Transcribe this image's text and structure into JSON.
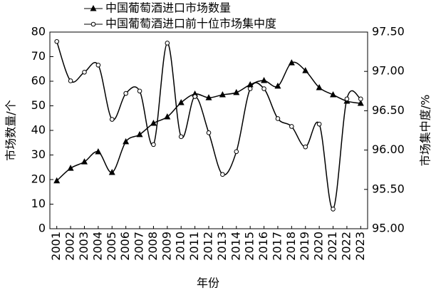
{
  "chart_data": {
    "type": "line",
    "x_label": "年份",
    "y_label": "市场数量/个",
    "y2_label": "市场集中度/%",
    "categories": [
      "2001",
      "2002",
      "2003",
      "2004",
      "2005",
      "2006",
      "2007",
      "2008",
      "2009",
      "2010",
      "2011",
      "2012",
      "2013",
      "2014",
      "2015",
      "2016",
      "2017",
      "2018",
      "2019",
      "2020",
      "2021",
      "2022",
      "2023"
    ],
    "series": [
      {
        "name": "中国葡萄酒进口市场数量",
        "color": "#000000",
        "marker": "triangle",
        "values": [
          19.5,
          24.6,
          27.2,
          31.3,
          22.9,
          35.4,
          38.3,
          42.9,
          45.5,
          51.3,
          54.8,
          53.3,
          54.5,
          55.4,
          58.6,
          60.3,
          58.0,
          67.5,
          64.3,
          57.4,
          54.5,
          51.9,
          51.0
        ]
      },
      {
        "name": "中国葡萄酒进口前十位市场集中度",
        "color": "#000000",
        "marker": "circle",
        "axis": "y2",
        "values": [
          97.38,
          96.88,
          96.99,
          97.08,
          96.39,
          96.72,
          96.75,
          96.07,
          97.36,
          96.17,
          96.68,
          96.22,
          95.69,
          95.98,
          96.78,
          96.78,
          96.4,
          96.3,
          96.04,
          96.33,
          95.25,
          96.65,
          96.65
        ]
      }
    ],
    "ylim": [
      0,
      80
    ],
    "yticks": [
      0,
      10,
      20,
      30,
      40,
      50,
      60,
      70,
      80
    ],
    "y2lim": [
      95,
      97.5
    ],
    "y2ticks": [
      {
        "value": 95,
        "label": "95.00"
      },
      {
        "value": 95.5,
        "label": "95.50"
      },
      {
        "value": 96,
        "label": "96.00"
      },
      {
        "value": 96.5,
        "label": "96.50"
      },
      {
        "value": 97,
        "label": "97.00"
      },
      {
        "value": 97.5,
        "label": "97.50"
      }
    ],
    "smooth": true,
    "grid": false,
    "legend": "top"
  }
}
